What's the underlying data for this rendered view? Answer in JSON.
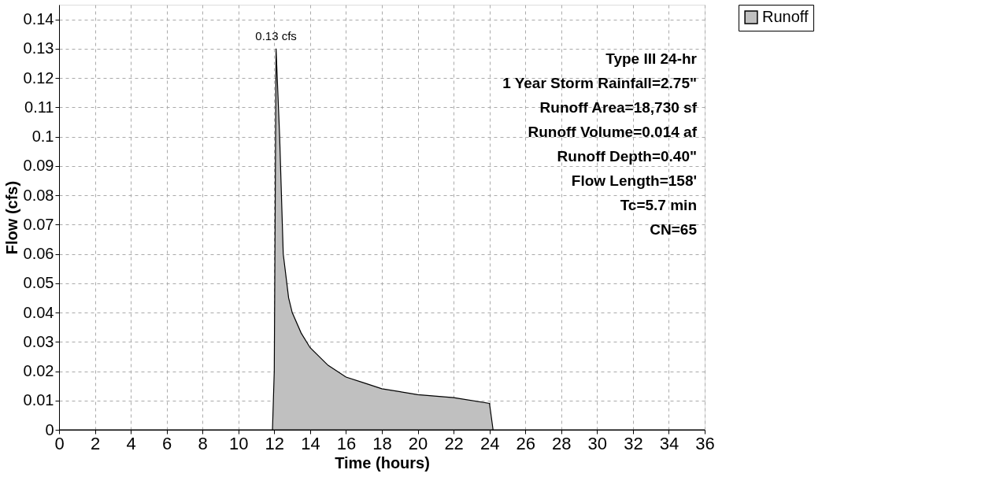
{
  "chart_data": {
    "type": "area",
    "xlabel": "Time  (hours)",
    "ylabel": "Flow  (cfs)",
    "x": [
      0,
      11.9,
      12.0,
      12.1,
      12.3,
      12.5,
      12.8,
      13,
      13.5,
      14,
      15,
      16,
      17,
      18,
      20,
      22,
      24,
      24.2,
      36
    ],
    "series": [
      {
        "name": "Runoff",
        "color": "#c0c0c0",
        "values": [
          0,
          0,
          0.02,
          0.13,
          0.1,
          0.06,
          0.045,
          0.04,
          0.033,
          0.028,
          0.022,
          0.018,
          0.016,
          0.014,
          0.012,
          0.011,
          0.009,
          0,
          0
        ]
      }
    ],
    "xlim": [
      0,
      36
    ],
    "xticks": [
      0,
      2,
      4,
      6,
      8,
      10,
      12,
      14,
      16,
      18,
      20,
      22,
      24,
      26,
      28,
      30,
      32,
      34,
      36
    ],
    "ylim": [
      0,
      0.145
    ],
    "yticks": [
      0,
      0.01,
      0.02,
      0.03,
      0.04,
      0.05,
      0.06,
      0.07,
      0.08,
      0.09,
      0.1,
      0.11,
      0.12,
      0.13,
      0.14
    ],
    "grid": true,
    "legend": "top right",
    "annotations": [
      {
        "text": "0.13 cfs",
        "x": 12.1,
        "y": 0.13
      },
      "Type III 24-hr",
      "1 Year Storm Rainfall=2.75\"",
      "Runoff Area=18,730 sf",
      "Runoff Volume=0.014 af",
      "Runoff Depth=0.40\"",
      "Flow Length=158'",
      "Tc=5.7 min",
      "CN=65"
    ]
  }
}
